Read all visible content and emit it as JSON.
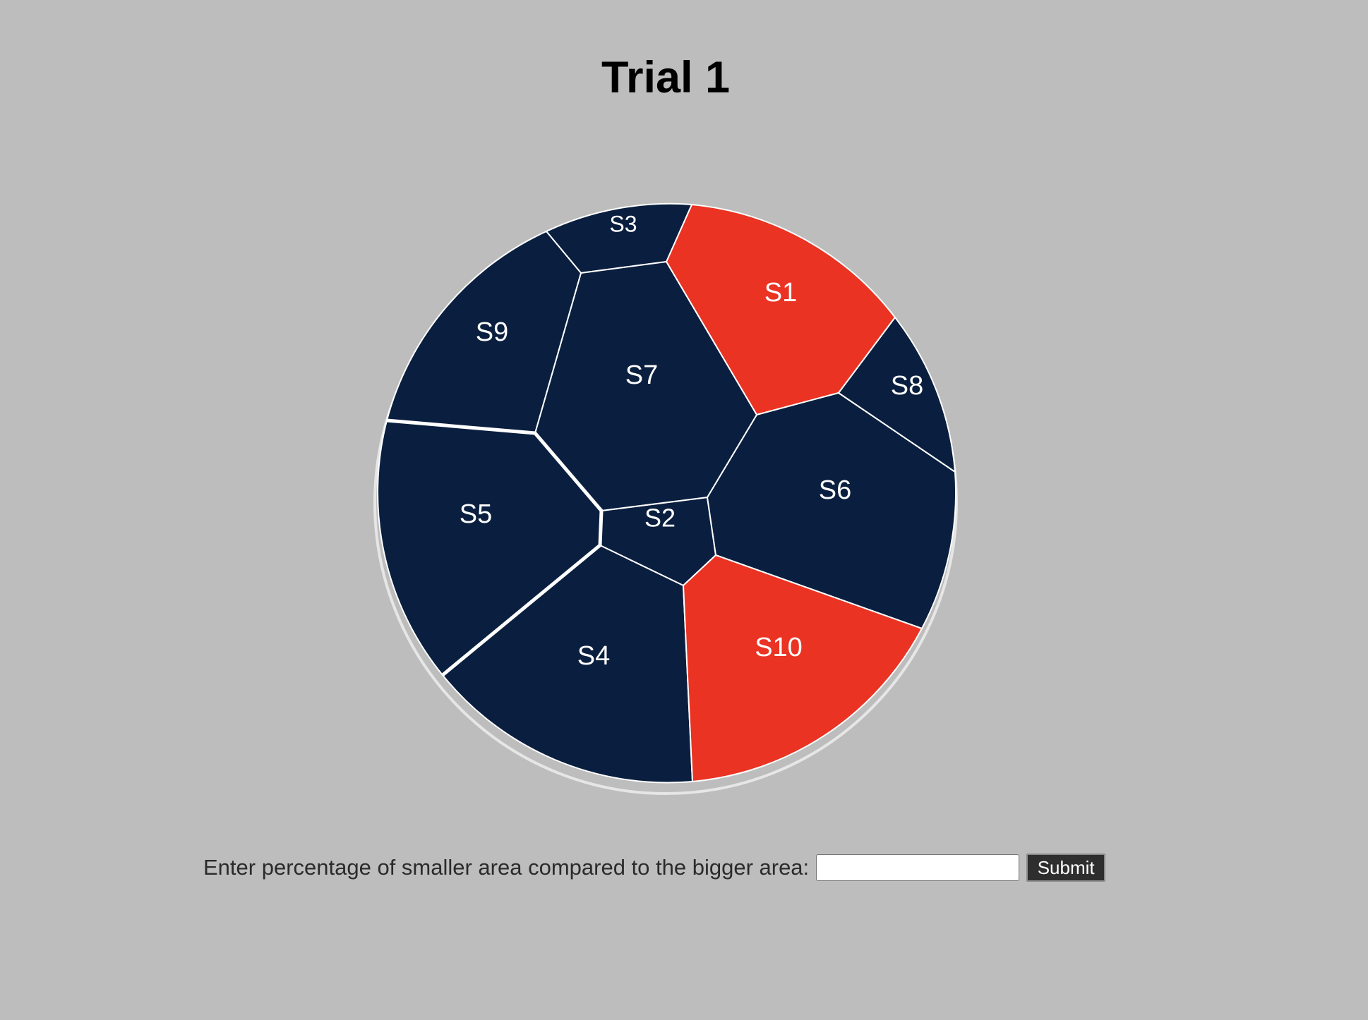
{
  "page": {
    "title": "Trial 1"
  },
  "colors": {
    "background": "#bdbdbd",
    "cell_dark": "#0a1f3f",
    "cell_highlight": "#ea3323",
    "border": "#ffffff"
  },
  "cells": [
    {
      "label": "S1",
      "highlighted": true
    },
    {
      "label": "S2",
      "highlighted": false
    },
    {
      "label": "S3",
      "highlighted": false
    },
    {
      "label": "S4",
      "highlighted": false
    },
    {
      "label": "S5",
      "highlighted": false
    },
    {
      "label": "S6",
      "highlighted": false
    },
    {
      "label": "S7",
      "highlighted": false
    },
    {
      "label": "S8",
      "highlighted": false
    },
    {
      "label": "S9",
      "highlighted": false
    },
    {
      "label": "S10",
      "highlighted": true
    }
  ],
  "form": {
    "prompt": "Enter percentage of smaller area compared to the bigger area:",
    "input_value": "",
    "submit_label": "Submit"
  }
}
